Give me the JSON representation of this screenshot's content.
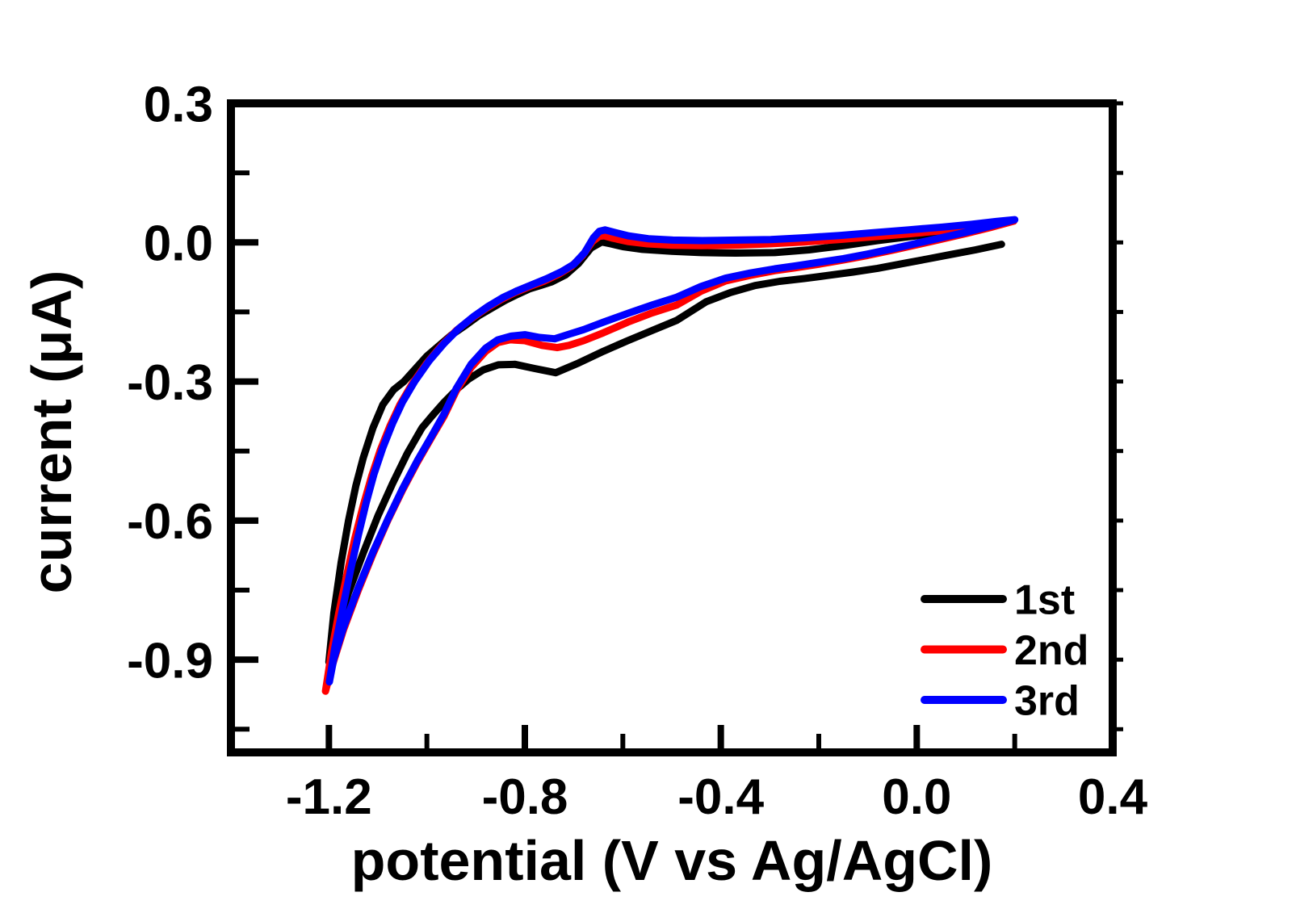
{
  "chart_data": {
    "type": "line",
    "subtype": "cyclic-voltammogram",
    "title": "",
    "xlabel": "potential (V vs Ag/AgCl)",
    "ylabel": "current (μA)",
    "xlim": [
      -1.4,
      0.4
    ],
    "ylim": [
      -1.1,
      0.3
    ],
    "grid": false,
    "background_color": "#ffffff",
    "axis_color": "#000000",
    "legend_position": "lower right",
    "x_ticks": {
      "major": [
        {
          "value": -1.2,
          "label": "-1.2"
        },
        {
          "value": -0.8,
          "label": "-0.8"
        },
        {
          "value": -0.4,
          "label": "-0.4"
        },
        {
          "value": 0.0,
          "label": "0.0"
        },
        {
          "value": 0.4,
          "label": "0.4"
        }
      ],
      "minor": [
        -1.0,
        -0.6,
        -0.2,
        0.2
      ]
    },
    "y_ticks": {
      "major": [
        {
          "value": 0.3,
          "label": "0.3"
        },
        {
          "value": 0.0,
          "label": "0.0"
        },
        {
          "value": -0.3,
          "label": "-0.3"
        },
        {
          "value": -0.6,
          "label": "-0.6"
        },
        {
          "value": -0.9,
          "label": "-0.9"
        }
      ],
      "minor": [
        0.15,
        -0.15,
        -0.45,
        -0.75,
        -1.05
      ]
    },
    "series": [
      {
        "name": "1st",
        "color": "#000000",
        "points": [
          [
            0.173,
            -0.004
          ],
          [
            0.12,
            -0.016
          ],
          [
            0.07,
            -0.026
          ],
          [
            0.02,
            -0.036
          ],
          [
            -0.03,
            -0.046
          ],
          [
            -0.08,
            -0.056
          ],
          [
            -0.13,
            -0.064
          ],
          [
            -0.18,
            -0.071
          ],
          [
            -0.23,
            -0.078
          ],
          [
            -0.28,
            -0.084
          ],
          [
            -0.33,
            -0.093
          ],
          [
            -0.38,
            -0.108
          ],
          [
            -0.43,
            -0.128
          ],
          [
            -0.49,
            -0.168
          ],
          [
            -0.54,
            -0.19
          ],
          [
            -0.59,
            -0.212
          ],
          [
            -0.64,
            -0.235
          ],
          [
            -0.69,
            -0.26
          ],
          [
            -0.737,
            -0.281
          ],
          [
            -0.78,
            -0.272
          ],
          [
            -0.82,
            -0.263
          ],
          [
            -0.854,
            -0.264
          ],
          [
            -0.885,
            -0.275
          ],
          [
            -0.915,
            -0.295
          ],
          [
            -0.937,
            -0.315
          ],
          [
            -0.965,
            -0.345
          ],
          [
            -0.99,
            -0.375
          ],
          [
            -1.01,
            -0.4
          ],
          [
            -1.04,
            -0.455
          ],
          [
            -1.07,
            -0.52
          ],
          [
            -1.1,
            -0.59
          ],
          [
            -1.13,
            -0.67
          ],
          [
            -1.16,
            -0.755
          ],
          [
            -1.185,
            -0.84
          ],
          [
            -1.2,
            -0.905
          ],
          [
            -1.19,
            -0.8
          ],
          [
            -1.175,
            -0.69
          ],
          [
            -1.16,
            -0.6
          ],
          [
            -1.145,
            -0.525
          ],
          [
            -1.13,
            -0.465
          ],
          [
            -1.11,
            -0.4
          ],
          [
            -1.09,
            -0.35
          ],
          [
            -1.068,
            -0.318
          ],
          [
            -1.047,
            -0.3
          ],
          [
            -1.0,
            -0.245
          ],
          [
            -0.95,
            -0.2
          ],
          [
            -0.92,
            -0.178
          ],
          [
            -0.894,
            -0.158
          ],
          [
            -0.865,
            -0.14
          ],
          [
            -0.84,
            -0.125
          ],
          [
            -0.815,
            -0.112
          ],
          [
            -0.79,
            -0.1
          ],
          [
            -0.765,
            -0.092
          ],
          [
            -0.745,
            -0.085
          ],
          [
            -0.717,
            -0.07
          ],
          [
            -0.69,
            -0.045
          ],
          [
            -0.665,
            -0.012
          ],
          [
            -0.643,
            0.001
          ],
          [
            -0.625,
            -0.003
          ],
          [
            -0.6,
            -0.009
          ],
          [
            -0.56,
            -0.015
          ],
          [
            -0.5,
            -0.019
          ],
          [
            -0.44,
            -0.022
          ],
          [
            -0.37,
            -0.023
          ],
          [
            -0.29,
            -0.022
          ],
          [
            -0.22,
            -0.016
          ],
          [
            -0.15,
            -0.007
          ],
          [
            -0.08,
            0.004
          ],
          [
            -0.01,
            0.013
          ],
          [
            0.06,
            0.022
          ],
          [
            0.11,
            0.029
          ],
          [
            0.16,
            0.038
          ]
        ]
      },
      {
        "name": "2nd",
        "color": "#ff0000",
        "points": [
          [
            0.198,
            0.046
          ],
          [
            0.15,
            0.032
          ],
          [
            0.1,
            0.019
          ],
          [
            0.05,
            0.007
          ],
          [
            0.0,
            -0.005
          ],
          [
            -0.05,
            -0.017
          ],
          [
            -0.1,
            -0.028
          ],
          [
            -0.15,
            -0.038
          ],
          [
            -0.2,
            -0.047
          ],
          [
            -0.25,
            -0.055
          ],
          [
            -0.29,
            -0.061
          ],
          [
            -0.34,
            -0.071
          ],
          [
            -0.39,
            -0.083
          ],
          [
            -0.44,
            -0.105
          ],
          [
            -0.49,
            -0.135
          ],
          [
            -0.54,
            -0.152
          ],
          [
            -0.59,
            -0.172
          ],
          [
            -0.64,
            -0.195
          ],
          [
            -0.68,
            -0.212
          ],
          [
            -0.71,
            -0.222
          ],
          [
            -0.734,
            -0.227
          ],
          [
            -0.765,
            -0.222
          ],
          [
            -0.8,
            -0.212
          ],
          [
            -0.83,
            -0.21
          ],
          [
            -0.855,
            -0.216
          ],
          [
            -0.88,
            -0.235
          ],
          [
            -0.91,
            -0.27
          ],
          [
            -0.94,
            -0.32
          ],
          [
            -0.965,
            -0.375
          ],
          [
            -0.99,
            -0.42
          ],
          [
            -1.02,
            -0.475
          ],
          [
            -1.05,
            -0.535
          ],
          [
            -1.08,
            -0.6
          ],
          [
            -1.11,
            -0.672
          ],
          [
            -1.14,
            -0.75
          ],
          [
            -1.17,
            -0.835
          ],
          [
            -1.193,
            -0.912
          ],
          [
            -1.207,
            -0.968
          ],
          [
            -1.195,
            -0.885
          ],
          [
            -1.18,
            -0.8
          ],
          [
            -1.163,
            -0.715
          ],
          [
            -1.147,
            -0.638
          ],
          [
            -1.13,
            -0.568
          ],
          [
            -1.113,
            -0.505
          ],
          [
            -1.095,
            -0.448
          ],
          [
            -1.075,
            -0.395
          ],
          [
            -1.055,
            -0.35
          ],
          [
            -1.03,
            -0.305
          ],
          [
            -1.0,
            -0.26
          ],
          [
            -0.97,
            -0.222
          ],
          [
            -0.94,
            -0.19
          ],
          [
            -0.91,
            -0.165
          ],
          [
            -0.88,
            -0.143
          ],
          [
            -0.85,
            -0.124
          ],
          [
            -0.82,
            -0.108
          ],
          [
            -0.79,
            -0.095
          ],
          [
            -0.76,
            -0.083
          ],
          [
            -0.73,
            -0.068
          ],
          [
            -0.705,
            -0.052
          ],
          [
            -0.682,
            -0.028
          ],
          [
            -0.662,
            0.002
          ],
          [
            -0.648,
            0.013
          ],
          [
            -0.638,
            0.014
          ],
          [
            -0.62,
            0.009
          ],
          [
            -0.59,
            0.002
          ],
          [
            -0.55,
            -0.003
          ],
          [
            -0.5,
            -0.006
          ],
          [
            -0.44,
            -0.007
          ],
          [
            -0.37,
            -0.006
          ],
          [
            -0.3,
            -0.003
          ],
          [
            -0.23,
            0.001
          ],
          [
            -0.16,
            0.006
          ],
          [
            -0.09,
            0.012
          ],
          [
            -0.02,
            0.018
          ],
          [
            0.05,
            0.025
          ],
          [
            0.11,
            0.032
          ],
          [
            0.16,
            0.04
          ],
          [
            0.198,
            0.046
          ]
        ]
      },
      {
        "name": "3rd",
        "color": "#0000ff",
        "points": [
          [
            0.2,
            0.049
          ],
          [
            0.15,
            0.035
          ],
          [
            0.1,
            0.022
          ],
          [
            0.05,
            0.01
          ],
          [
            0.0,
            -0.002
          ],
          [
            -0.05,
            -0.014
          ],
          [
            -0.1,
            -0.025
          ],
          [
            -0.15,
            -0.035
          ],
          [
            -0.2,
            -0.043
          ],
          [
            -0.25,
            -0.051
          ],
          [
            -0.29,
            -0.057
          ],
          [
            -0.34,
            -0.066
          ],
          [
            -0.39,
            -0.077
          ],
          [
            -0.44,
            -0.095
          ],
          [
            -0.49,
            -0.118
          ],
          [
            -0.54,
            -0.135
          ],
          [
            -0.59,
            -0.153
          ],
          [
            -0.64,
            -0.172
          ],
          [
            -0.68,
            -0.188
          ],
          [
            -0.71,
            -0.198
          ],
          [
            -0.739,
            -0.208
          ],
          [
            -0.77,
            -0.205
          ],
          [
            -0.8,
            -0.199
          ],
          [
            -0.828,
            -0.202
          ],
          [
            -0.855,
            -0.21
          ],
          [
            -0.88,
            -0.228
          ],
          [
            -0.91,
            -0.263
          ],
          [
            -0.94,
            -0.315
          ],
          [
            -0.965,
            -0.37
          ],
          [
            -0.99,
            -0.417
          ],
          [
            -1.02,
            -0.472
          ],
          [
            -1.05,
            -0.532
          ],
          [
            -1.08,
            -0.598
          ],
          [
            -1.11,
            -0.668
          ],
          [
            -1.14,
            -0.745
          ],
          [
            -1.17,
            -0.83
          ],
          [
            -1.19,
            -0.898
          ],
          [
            -1.199,
            -0.948
          ],
          [
            -1.188,
            -0.875
          ],
          [
            -1.172,
            -0.79
          ],
          [
            -1.156,
            -0.708
          ],
          [
            -1.14,
            -0.632
          ],
          [
            -1.124,
            -0.562
          ],
          [
            -1.108,
            -0.5
          ],
          [
            -1.09,
            -0.443
          ],
          [
            -1.07,
            -0.39
          ],
          [
            -1.05,
            -0.345
          ],
          [
            -1.025,
            -0.3
          ],
          [
            -0.995,
            -0.255
          ],
          [
            -0.965,
            -0.218
          ],
          [
            -0.935,
            -0.186
          ],
          [
            -0.905,
            -0.16
          ],
          [
            -0.875,
            -0.138
          ],
          [
            -0.845,
            -0.119
          ],
          [
            -0.815,
            -0.104
          ],
          [
            -0.785,
            -0.091
          ],
          [
            -0.755,
            -0.078
          ],
          [
            -0.725,
            -0.063
          ],
          [
            -0.7,
            -0.047
          ],
          [
            -0.678,
            -0.022
          ],
          [
            -0.66,
            0.01
          ],
          [
            -0.648,
            0.024
          ],
          [
            -0.636,
            0.027
          ],
          [
            -0.618,
            0.022
          ],
          [
            -0.588,
            0.014
          ],
          [
            -0.548,
            0.008
          ],
          [
            -0.498,
            0.005
          ],
          [
            -0.438,
            0.004
          ],
          [
            -0.368,
            0.005
          ],
          [
            -0.298,
            0.006
          ],
          [
            -0.228,
            0.01
          ],
          [
            -0.158,
            0.015
          ],
          [
            -0.088,
            0.021
          ],
          [
            -0.018,
            0.027
          ],
          [
            0.052,
            0.033
          ],
          [
            0.112,
            0.039
          ],
          [
            0.162,
            0.045
          ],
          [
            0.2,
            0.049
          ]
        ]
      }
    ]
  }
}
